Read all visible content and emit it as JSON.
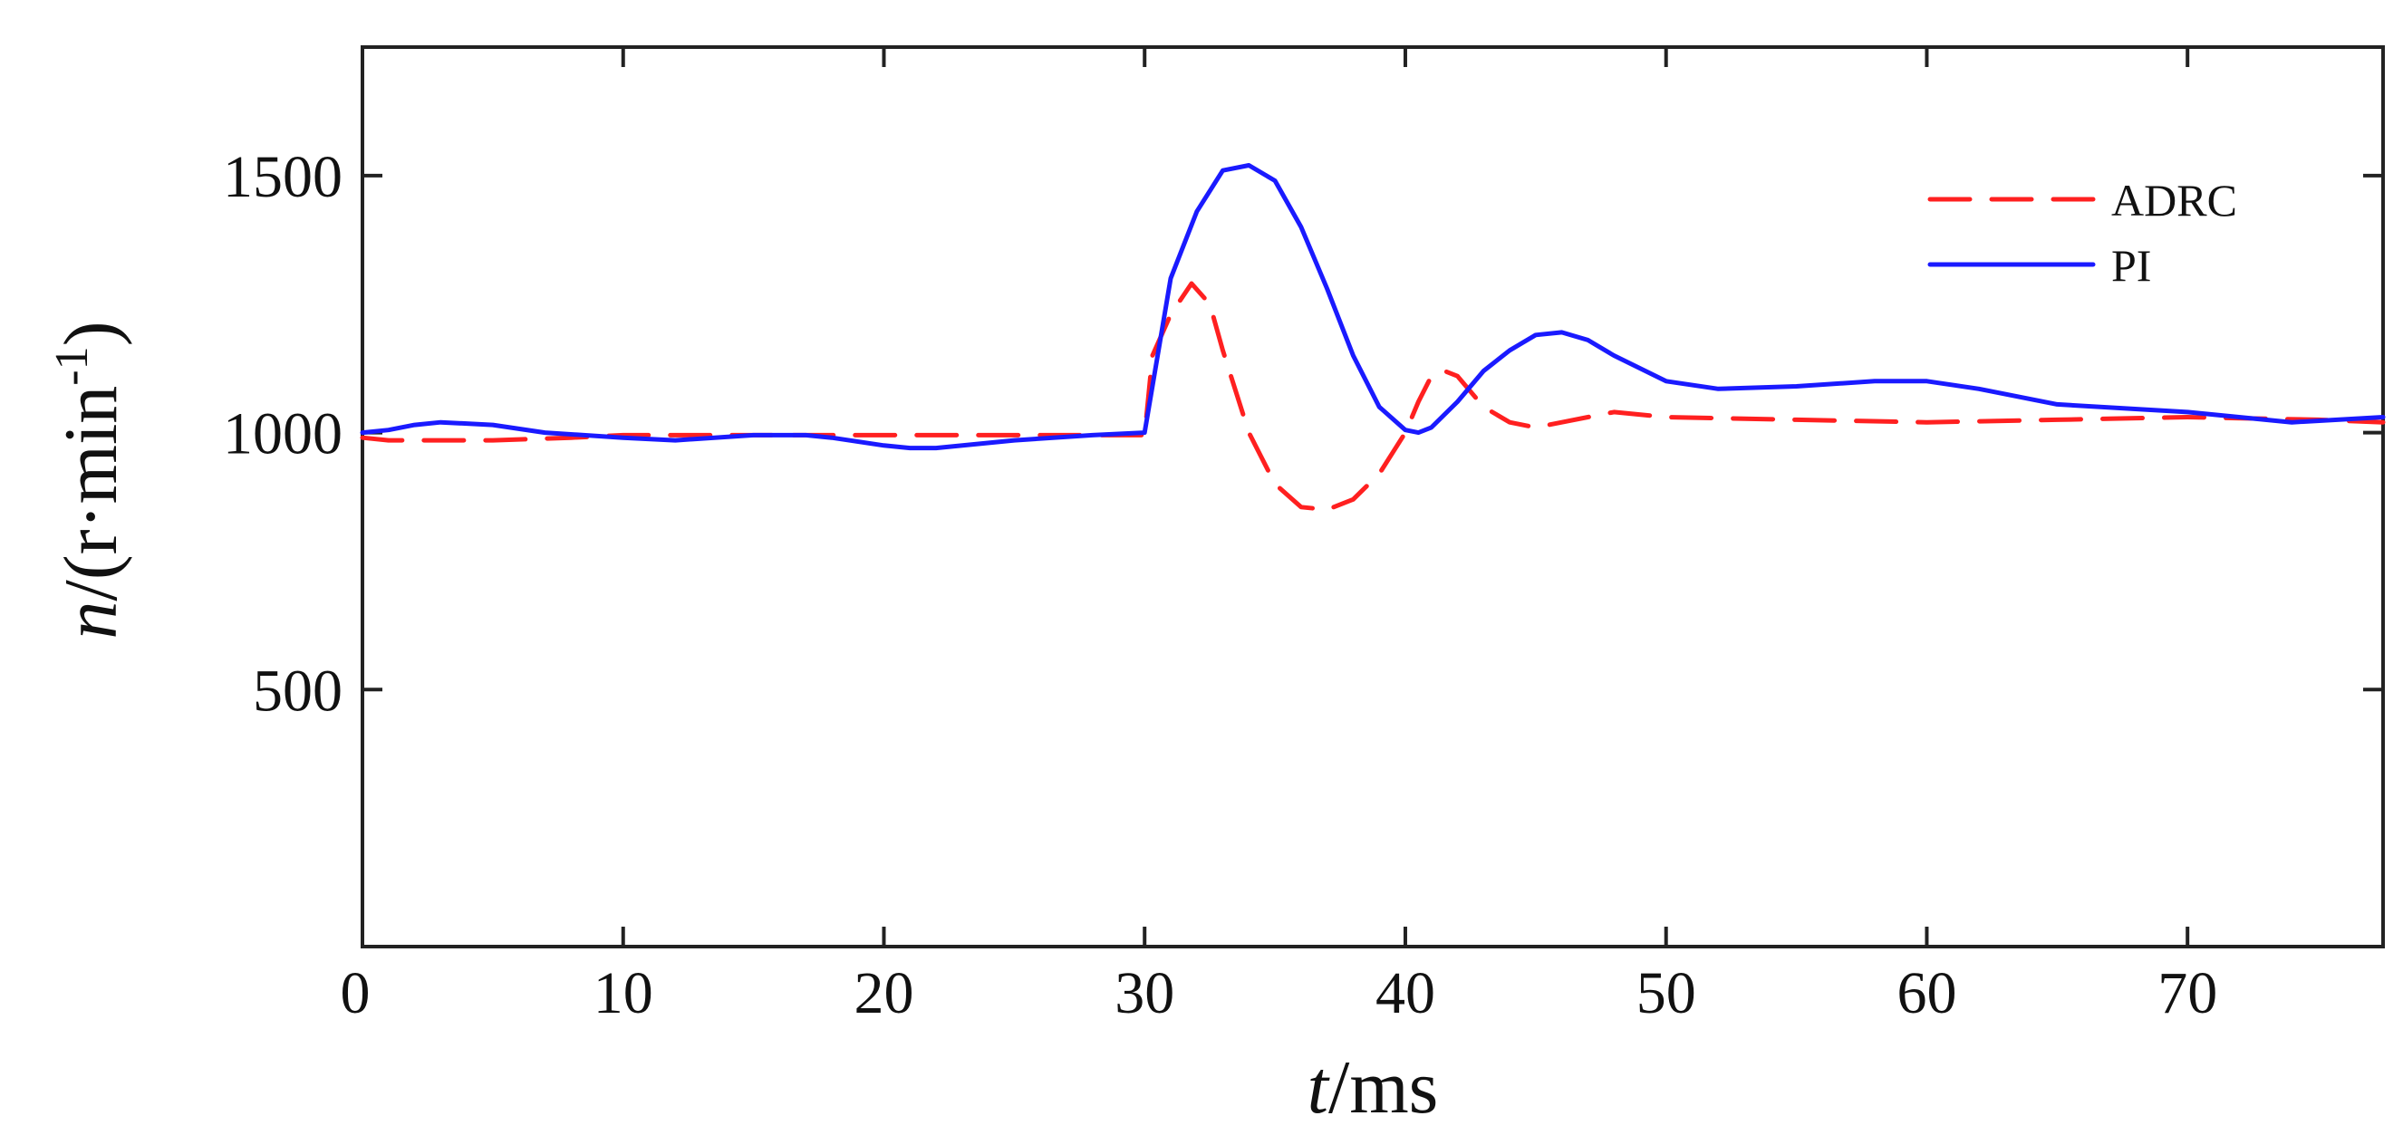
{
  "chart_data": {
    "type": "line",
    "title": "",
    "xlabel_var": "t",
    "xlabel_unit": "/ms",
    "ylabel_var": "n",
    "ylabel_unit_open": "/(r·min",
    "ylabel_exponent": "-1",
    "ylabel_unit_close": ")",
    "xlim": [
      0,
      77.5
    ],
    "ylim": [
      0,
      1750
    ],
    "xticks": [
      0,
      10,
      20,
      30,
      40,
      50,
      60,
      70
    ],
    "yticks": [
      500,
      1000,
      1500
    ],
    "grid": false,
    "legend_position": "top-right",
    "series": [
      {
        "name": "ADRC",
        "color": "#ff2020",
        "dash": "dashed",
        "x": [
          0,
          1,
          2,
          3,
          5,
          8,
          10,
          12,
          15,
          18,
          20,
          25,
          29,
          30,
          30.3,
          31,
          31.8,
          32.5,
          33,
          34,
          35,
          36,
          37,
          38,
          39,
          40,
          40.5,
          41,
          41.5,
          42,
          43,
          44,
          45,
          46,
          47,
          48,
          50,
          55,
          60,
          65,
          70,
          75,
          77.5
        ],
        "y": [
          990,
          985,
          985,
          985,
          985,
          990,
          995,
          995,
          995,
          995,
          995,
          995,
          995,
          995,
          1150,
          1230,
          1290,
          1250,
          1160,
          1000,
          900,
          855,
          850,
          870,
          920,
          1000,
          1060,
          1110,
          1120,
          1110,
          1050,
          1020,
          1010,
          1020,
          1030,
          1040,
          1030,
          1025,
          1020,
          1025,
          1030,
          1025,
          1020
        ]
      },
      {
        "name": "PI",
        "color": "#1a1aff",
        "dash": "solid",
        "x": [
          0,
          1,
          2,
          3,
          5,
          7,
          10,
          12,
          15,
          17,
          18,
          20,
          21,
          22,
          25,
          28,
          30,
          30.5,
          31,
          32,
          33,
          34,
          35,
          36,
          37,
          38,
          39,
          40,
          40.5,
          41,
          42,
          43,
          44,
          45,
          46,
          47,
          48,
          50,
          52,
          55,
          58,
          60,
          62,
          65,
          70,
          74,
          77.5
        ],
        "y": [
          1000,
          1005,
          1015,
          1020,
          1015,
          1000,
          990,
          985,
          995,
          995,
          990,
          975,
          970,
          970,
          985,
          995,
          1000,
          1150,
          1300,
          1430,
          1510,
          1520,
          1490,
          1400,
          1280,
          1150,
          1050,
          1005,
          1000,
          1010,
          1060,
          1120,
          1160,
          1190,
          1195,
          1180,
          1150,
          1100,
          1085,
          1090,
          1100,
          1100,
          1085,
          1055,
          1040,
          1020,
          1030
        ]
      }
    ]
  }
}
